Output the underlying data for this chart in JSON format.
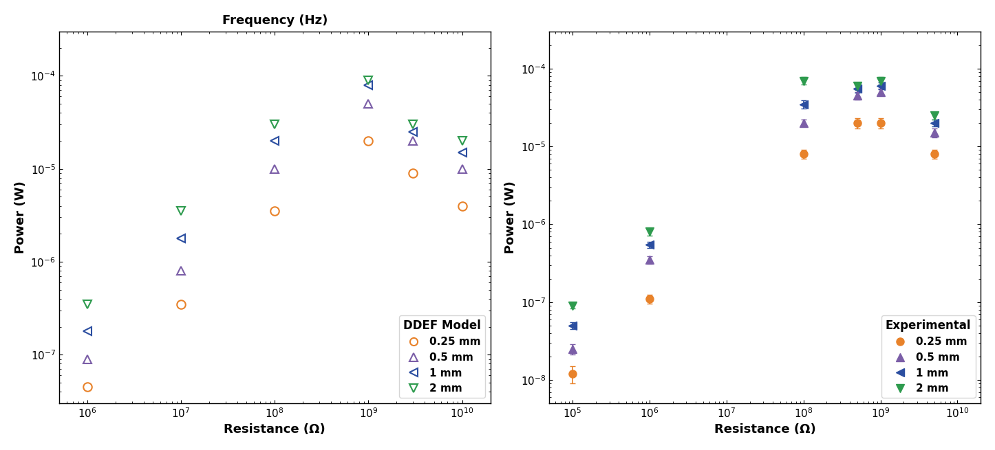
{
  "title_left": "Frequency (Hz)",
  "xlabel": "Resistance (Ω)",
  "ylabel": "Power (W)",
  "legend_left_title": "DDEF Model",
  "legend_right_title": "Experimental",
  "series_labels": [
    "0.25 mm",
    "0.5 mm",
    "1 mm",
    "2 mm"
  ],
  "colors": [
    "#E8822A",
    "#7B5EA7",
    "#2B4EA0",
    "#2E9B4E"
  ],
  "left": {
    "xlim": [
      500000.0,
      20000000000.0
    ],
    "ylim": [
      3e-08,
      0.0003
    ],
    "data": {
      "0.25mm": {
        "x": [
          1000000.0,
          10000000.0,
          100000000.0,
          1000000000.0,
          3000000000.0,
          10000000000.0
        ],
        "y": [
          4.5e-08,
          3.5e-07,
          3.5e-06,
          2e-05,
          9e-06,
          4e-06
        ]
      },
      "0.5mm": {
        "x": [
          1000000.0,
          10000000.0,
          100000000.0,
          1000000000.0,
          3000000000.0,
          10000000000.0
        ],
        "y": [
          9e-08,
          8e-07,
          1e-05,
          5e-05,
          2e-05,
          1e-05
        ]
      },
      "1mm": {
        "x": [
          1000000.0,
          10000000.0,
          100000000.0,
          1000000000.0,
          3000000000.0,
          10000000000.0
        ],
        "y": [
          1.8e-07,
          1.8e-06,
          2e-05,
          8e-05,
          2.5e-05,
          1.5e-05
        ]
      },
      "2mm": {
        "x": [
          1000000.0,
          10000000.0,
          100000000.0,
          1000000000.0,
          3000000000.0,
          10000000000.0
        ],
        "y": [
          3.5e-07,
          3.5e-06,
          3e-05,
          9e-05,
          3e-05,
          2e-05
        ]
      }
    }
  },
  "right": {
    "xlim": [
      50000.0,
      20000000000.0
    ],
    "ylim": [
      5e-09,
      0.0003
    ],
    "data": {
      "0.25mm": {
        "x": [
          100000.0,
          1000000.0,
          100000000.0,
          500000000.0,
          1000000000.0,
          5000000000.0
        ],
        "y": [
          1.2e-08,
          1.1e-07,
          8e-06,
          2e-05,
          2e-05,
          8e-06
        ],
        "yerr": [
          3e-09,
          1.5e-08,
          1e-06,
          3e-06,
          3e-06,
          1e-06
        ]
      },
      "0.5mm": {
        "x": [
          100000.0,
          1000000.0,
          100000000.0,
          500000000.0,
          1000000000.0,
          5000000000.0
        ],
        "y": [
          2.5e-08,
          3.5e-07,
          2e-05,
          4.5e-05,
          5e-05,
          1.5e-05
        ],
        "yerr": [
          4e-09,
          4e-08,
          2e-06,
          5e-06,
          5e-06,
          2e-06
        ]
      },
      "1mm": {
        "x": [
          100000.0,
          1000000.0,
          100000000.0,
          500000000.0,
          1000000000.0,
          5000000000.0
        ],
        "y": [
          5e-08,
          5.5e-07,
          3.5e-05,
          5.5e-05,
          6e-05,
          2e-05
        ],
        "yerr": [
          5e-09,
          5e-08,
          4e-06,
          6e-06,
          6e-06,
          2e-06
        ]
      },
      "2mm": {
        "x": [
          100000.0,
          1000000.0,
          100000000.0,
          500000000.0,
          1000000000.0,
          5000000000.0
        ],
        "y": [
          9e-08,
          8e-07,
          7e-05,
          6e-05,
          7e-05,
          2.5e-05
        ],
        "yerr": [
          8e-09,
          8e-08,
          8e-06,
          7e-06,
          8e-06,
          3e-06
        ]
      }
    }
  }
}
